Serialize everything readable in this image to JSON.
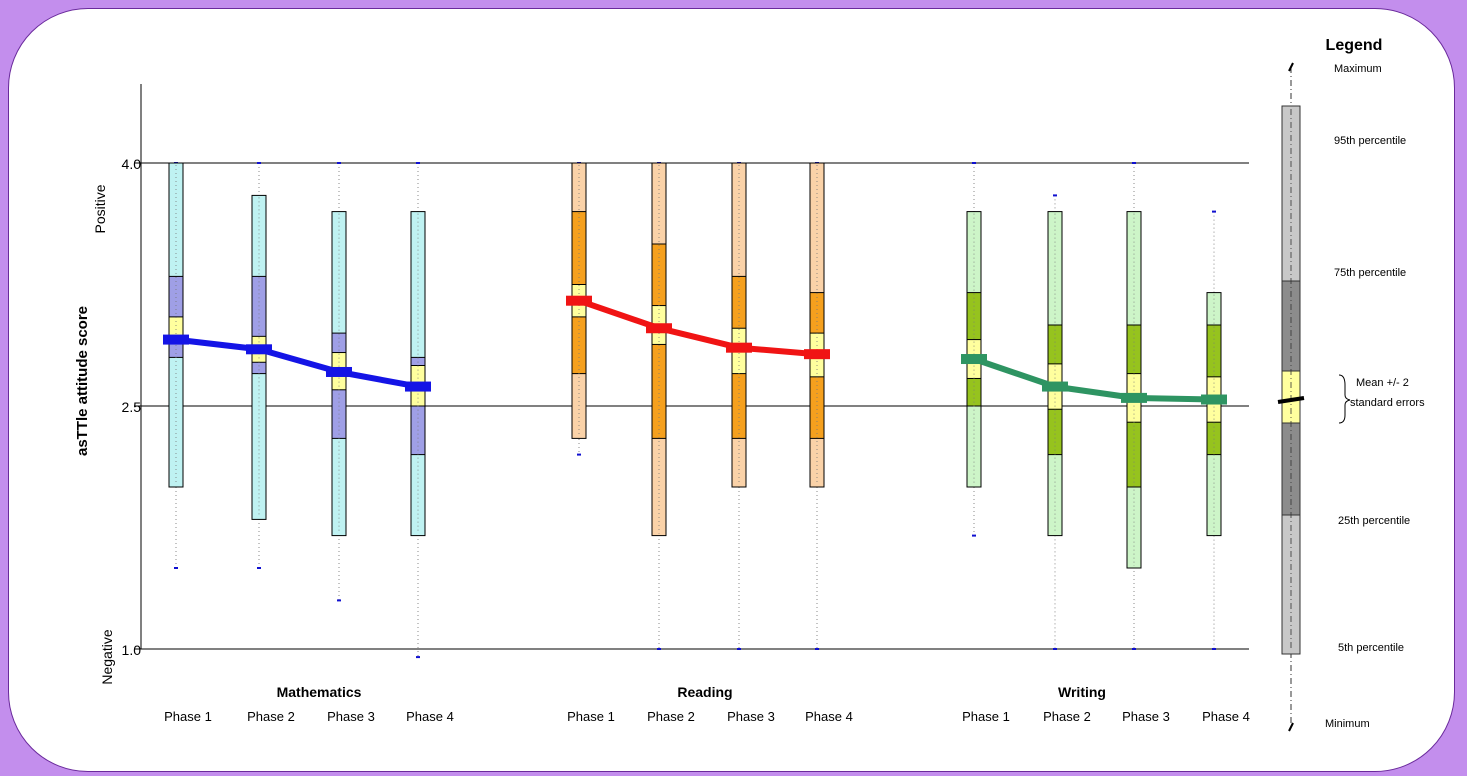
{
  "colors": {
    "background": "#c38eed",
    "panel": "#ffffff",
    "border": "#6a2a9c",
    "mean_whisker": "#1010d0"
  },
  "chart_data": {
    "type": "boxplot",
    "ylabel": "asTTle attitude score",
    "ylim": [
      1.0,
      4.6
    ],
    "yticks": [
      "1.0",
      "2.5",
      "4.0"
    ],
    "yticks_values": [
      1.0,
      2.5,
      4.0
    ],
    "y_end_labels": {
      "top": "Positive",
      "bottom": "Negative"
    },
    "phase_labels": [
      "Phase 1",
      "Phase 2",
      "Phase 3",
      "Phase 4"
    ],
    "groups": [
      {
        "name": "Mathematics",
        "colors": {
          "outer": "#bff2f2",
          "inner": "#9f9fe6",
          "mean": "#ffff9e",
          "line": "#1414e6"
        },
        "boxes": [
          {
            "phase": "Phase 1",
            "min": 1.5,
            "p5": 2.0,
            "p25": 2.8,
            "mean_lo": 2.9,
            "mean": 2.91,
            "mean_hi": 3.05,
            "p75": 3.3,
            "p95": 4.0,
            "max": 4.0
          },
          {
            "phase": "Phase 2",
            "min": 1.5,
            "p5": 1.8,
            "p25": 2.7,
            "mean_lo": 2.77,
            "mean": 2.85,
            "mean_hi": 2.93,
            "p75": 3.3,
            "p95": 3.8,
            "max": 4.0
          },
          {
            "phase": "Phase 3",
            "min": 1.3,
            "p5": 1.7,
            "p25": 2.3,
            "mean_lo": 2.6,
            "mean": 2.71,
            "mean_hi": 2.83,
            "p75": 2.95,
            "p95": 3.7,
            "max": 4.0
          },
          {
            "phase": "Phase 4",
            "min": 0.95,
            "p5": 1.7,
            "p25": 2.2,
            "mean_lo": 2.5,
            "mean": 2.62,
            "mean_hi": 2.75,
            "p75": 2.8,
            "p95": 3.7,
            "max": 4.0
          }
        ]
      },
      {
        "name": "Reading",
        "colors": {
          "outer": "#fad2a8",
          "inner": "#f5a01e",
          "mean": "#ffff9e",
          "line": "#f01414"
        },
        "boxes": [
          {
            "phase": "Phase 1",
            "min": 2.2,
            "p5": 2.3,
            "p25": 2.7,
            "mean_lo": 3.05,
            "mean": 3.15,
            "mean_hi": 3.25,
            "p75": 3.7,
            "p95": 4.0,
            "max": 4.0
          },
          {
            "phase": "Phase 2",
            "min": 1.0,
            "p5": 1.7,
            "p25": 2.3,
            "mean_lo": 2.88,
            "mean": 2.98,
            "mean_hi": 3.12,
            "p75": 3.5,
            "p95": 4.0,
            "max": 4.0
          },
          {
            "phase": "Phase 3",
            "min": 1.0,
            "p5": 2.0,
            "p25": 2.3,
            "mean_lo": 2.7,
            "mean": 2.86,
            "mean_hi": 2.98,
            "p75": 3.3,
            "p95": 4.0,
            "max": 4.0
          },
          {
            "phase": "Phase 4",
            "min": 1.0,
            "p5": 2.0,
            "p25": 2.3,
            "mean_lo": 2.68,
            "mean": 2.82,
            "mean_hi": 2.95,
            "p75": 3.2,
            "p95": 4.0,
            "max": 4.0
          }
        ]
      },
      {
        "name": "Writing",
        "colors": {
          "outer": "#cdf5c8",
          "inner": "#96c31e",
          "mean": "#ffff9e",
          "line": "#2e9462"
        },
        "boxes": [
          {
            "phase": "Phase 1",
            "min": 1.7,
            "p5": 2.0,
            "p25": 2.5,
            "mean_lo": 2.67,
            "mean": 2.79,
            "mean_hi": 2.91,
            "p75": 3.2,
            "p95": 3.7,
            "max": 4.0
          },
          {
            "phase": "Phase 2",
            "min": 1.0,
            "p5": 1.7,
            "p25": 2.2,
            "mean_lo": 2.48,
            "mean": 2.62,
            "mean_hi": 2.76,
            "p75": 3.0,
            "p95": 3.7,
            "max": 3.8
          },
          {
            "phase": "Phase 3",
            "min": 1.0,
            "p5": 1.5,
            "p25": 2.0,
            "mean_lo": 2.4,
            "mean": 2.55,
            "mean_hi": 2.7,
            "p75": 3.0,
            "p95": 3.7,
            "max": 4.0
          },
          {
            "phase": "Phase 4",
            "min": 1.0,
            "p5": 1.7,
            "p25": 2.2,
            "mean_lo": 2.4,
            "mean": 2.54,
            "mean_hi": 2.68,
            "p75": 3.0,
            "p95": 3.2,
            "max": 3.7
          }
        ]
      }
    ],
    "legend": {
      "title": "Legend",
      "labels": {
        "max": "Maximum",
        "p95": "95th percentile",
        "p75": "75th percentile",
        "mean_line1": "Mean +/- 2",
        "mean_line2": "standard errors",
        "p25": "25th percentile",
        "p5": "5th percentile",
        "min": "Minimum"
      }
    }
  }
}
